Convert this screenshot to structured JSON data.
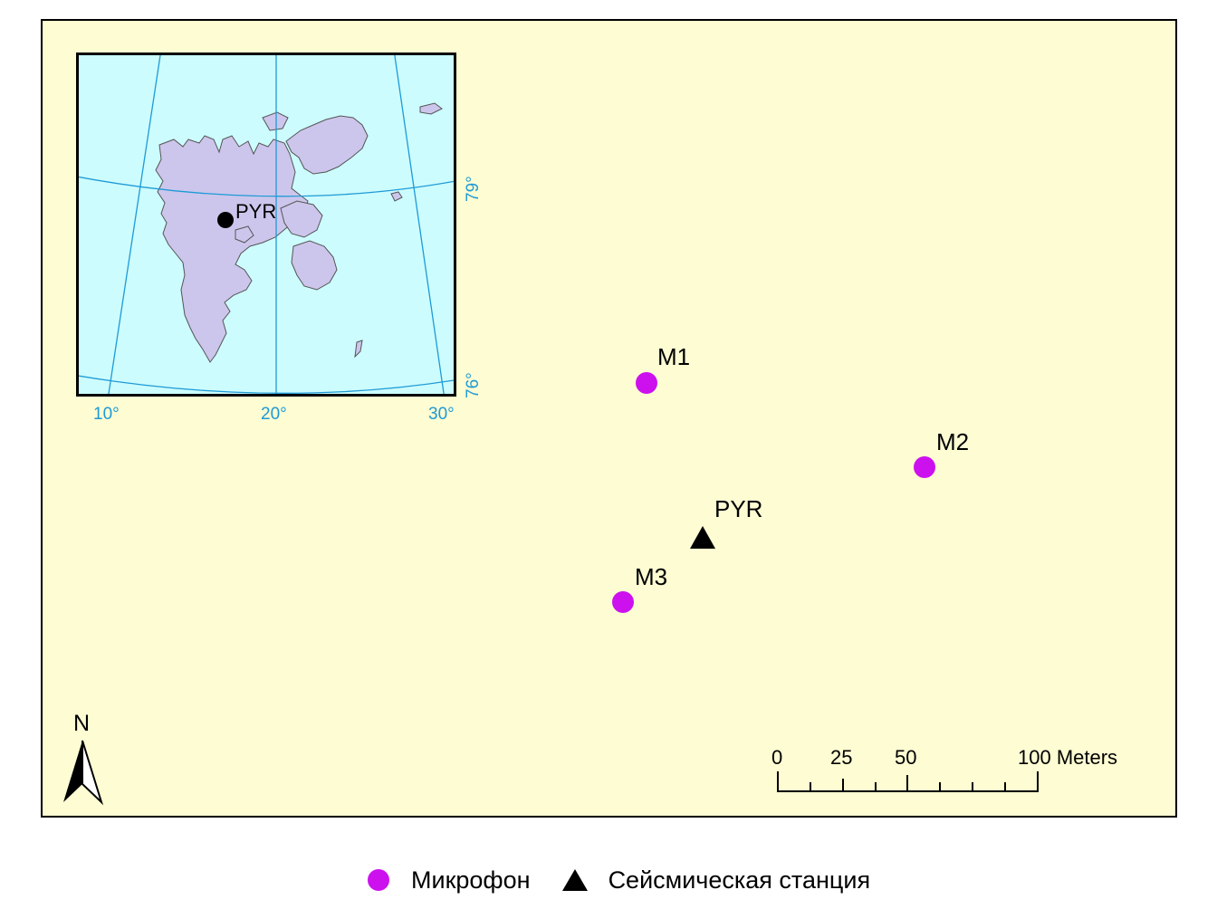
{
  "colors": {
    "map_background": "#fdfcd2",
    "sea": "#ccfcfe",
    "land": "#ccc6ec",
    "graticule": "#1e9ad6",
    "microphone": "#cc11ee",
    "station": "#000000"
  },
  "inset": {
    "station_label": "PYR",
    "longitude_labels": [
      "10°",
      "20°",
      "30°"
    ],
    "latitude_labels": [
      "79°",
      "76°"
    ]
  },
  "main_map": {
    "microphones": [
      {
        "label": "M1"
      },
      {
        "label": "M2"
      },
      {
        "label": "M3"
      }
    ],
    "station": {
      "label": "PYR"
    }
  },
  "north_arrow": {
    "label": "N",
    "icon": "north-arrow-icon"
  },
  "scale_bar": {
    "tick_labels": [
      "0",
      "25",
      "50",
      "100 Meters"
    ]
  },
  "legend": {
    "microphone_label": "Микрофон",
    "station_label": "Сейсмическая станция"
  }
}
